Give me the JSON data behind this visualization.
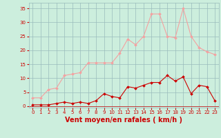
{
  "x": [
    0,
    1,
    2,
    3,
    4,
    5,
    6,
    7,
    8,
    9,
    10,
    11,
    12,
    13,
    14,
    15,
    16,
    17,
    18,
    19,
    20,
    21,
    22,
    23
  ],
  "rafales": [
    3,
    3,
    6,
    6.5,
    11,
    11.5,
    12,
    15.5,
    15.5,
    15.5,
    15.5,
    19,
    24,
    22,
    25,
    33,
    33,
    25,
    24.5,
    35,
    25,
    21,
    19.5,
    18.5
  ],
  "moyen": [
    0.5,
    0.5,
    0.5,
    1,
    1.5,
    1,
    1.5,
    1,
    2,
    4.5,
    3.5,
    3,
    7,
    6.5,
    7.5,
    8.5,
    8.5,
    11,
    9,
    10.5,
    4.5,
    7.5,
    7,
    2
  ],
  "line_color_rafales": "#f4a0a0",
  "line_color_moyen": "#cc0000",
  "marker_color_rafales": "#f4a0a0",
  "marker_color_moyen": "#cc0000",
  "bg_color": "#cceedd",
  "grid_color": "#99bbbb",
  "xlabel": "Vent moyen/en rafales ( km/h )",
  "xlabel_color": "#cc0000",
  "xlabel_fontsize": 7,
  "tick_color": "#cc0000",
  "tick_fontsize": 5,
  "ylim": [
    -0.5,
    37
  ],
  "yticks": [
    0,
    5,
    10,
    15,
    20,
    25,
    30,
    35
  ],
  "xlim": [
    -0.5,
    23.5
  ],
  "xticks": [
    0,
    1,
    2,
    3,
    4,
    5,
    6,
    7,
    8,
    9,
    10,
    11,
    12,
    13,
    14,
    15,
    16,
    17,
    18,
    19,
    20,
    21,
    22,
    23
  ]
}
